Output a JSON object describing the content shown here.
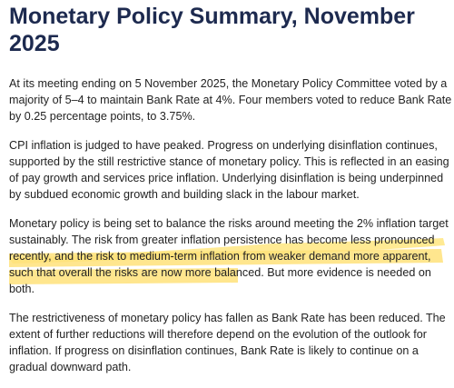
{
  "header": {
    "title_lines": [
      "Monetary Policy Summary, November",
      "2025"
    ]
  },
  "paragraphs": [
    {
      "lines": [
        "At its meeting ending on 5 November 2025, the Monetary Policy Committee voted by a",
        "majority of 5–4 to maintain Bank Rate at 4%. Four members voted to reduce Bank Rate",
        "by 0.25 percentage points, to 3.75%."
      ]
    },
    {
      "lines": [
        "CPI inflation is judged to have peaked. Progress on underlying disinflation continues,",
        "supported by the still restrictive stance of monetary policy. This is reflected in an easing",
        "of pay growth and services price inflation. Underlying disinflation is being underpinned",
        "by subdued economic growth and building slack in the labour market."
      ]
    },
    {
      "lines": [
        "Monetary policy is being set to balance the risks around meeting the 2% inflation target",
        "sustainably. The risk from greater inflation persistence has become less pronounced",
        "recently, and the risk to medium-term inflation from weaker demand more apparent,",
        "such that overall the risks are now more balanced. But more evidence is needed on",
        "both."
      ]
    },
    {
      "lines": [
        "The restrictiveness of monetary policy has fallen as Bank Rate has been reduced. The",
        "extent of further reductions will therefore depend on the evolution of the outlook for",
        "inflation. If progress on disinflation continues, Bank Rate is likely to continue on a",
        "gradual downward path."
      ]
    }
  ]
}
